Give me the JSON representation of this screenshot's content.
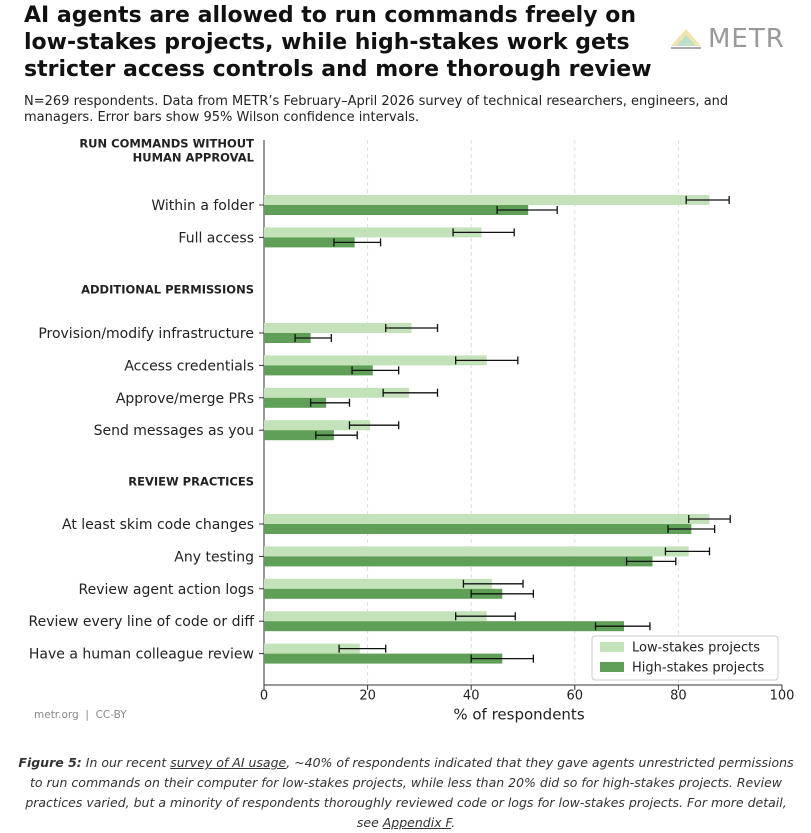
{
  "chart_data": {
    "type": "bar",
    "orientation": "horizontal",
    "title": "AI agents are allowed to run commands freely on low-stakes projects, while high-stakes work gets stricter access controls and more thorough review",
    "brand": "METR",
    "subtitle": "N=269 respondents. Data from METR’s February–April 2026 survey of technical researchers, engineers, and managers. Error bars show 95% Wilson confidence intervals.",
    "xlabel": "% of respondents",
    "source": "metr.org  |  CC-BY",
    "xlim": [
      0,
      100
    ],
    "xticks": [
      0,
      20,
      40,
      60,
      80,
      100
    ],
    "grid": true,
    "legend_position": "lower right",
    "series": [
      {
        "name": "Low-stakes projects",
        "color": "#c3e2b9"
      },
      {
        "name": "High-stakes projects",
        "color": "#5f9f58"
      }
    ],
    "sections": [
      {
        "title": [
          "RUN COMMANDS WITHOUT",
          "HUMAN APPROVAL"
        ],
        "categories": [
          "Within a folder",
          "Full access"
        ],
        "series": [
          {
            "values": [
              86,
              42
            ],
            "ci_low": [
              81.5,
              36.5
            ],
            "ci_high": [
              89.8,
              48.3
            ]
          },
          {
            "values": [
              51,
              17.5
            ],
            "ci_low": [
              45,
              13.5
            ],
            "ci_high": [
              56.6,
              22.5
            ]
          }
        ]
      },
      {
        "title": [
          "ADDITIONAL PERMISSIONS"
        ],
        "categories": [
          "Provision/modify infrastructure",
          "Access credentials",
          "Approve/merge PRs",
          "Send messages as you"
        ],
        "series": [
          {
            "values": [
              28.5,
              43,
              28,
              20.5
            ],
            "ci_low": [
              23.5,
              37,
              23,
              16.5
            ],
            "ci_high": [
              33.5,
              49,
              33.5,
              26
            ]
          },
          {
            "values": [
              9,
              21,
              12,
              13.5
            ],
            "ci_low": [
              6,
              17,
              9,
              10
            ],
            "ci_high": [
              13,
              26,
              16.5,
              18
            ]
          }
        ]
      },
      {
        "title": [
          "REVIEW PRACTICES"
        ],
        "categories": [
          "At least skim code changes",
          "Any testing",
          "Review agent action logs",
          "Review every line of code or diff",
          "Have a human colleague review"
        ],
        "series": [
          {
            "values": [
              86,
              82,
              44,
              43,
              18.5
            ],
            "ci_low": [
              82,
              77.5,
              38.5,
              37,
              14.5
            ],
            "ci_high": [
              90,
              86,
              50,
              48.5,
              23.5
            ]
          },
          {
            "values": [
              82.5,
              75,
              46,
              69.5,
              46
            ],
            "ci_low": [
              78,
              70,
              40,
              64,
              40
            ],
            "ci_high": [
              87,
              79.5,
              52,
              74.5,
              52
            ]
          }
        ]
      }
    ]
  },
  "caption": {
    "label": "Figure 5:",
    "parts": [
      " In our recent ",
      "survey of AI usage",
      ", ~40% of respondents indicated that they gave agents unrestricted permissions to run commands on their computer for low-stakes projects, while less than 20% did so for high-stakes projects. Review practices varied, but a minority of respondents thoroughly reviewed code or logs for low-stakes projects. For more detail, see ",
      "Appendix F",
      "."
    ]
  }
}
